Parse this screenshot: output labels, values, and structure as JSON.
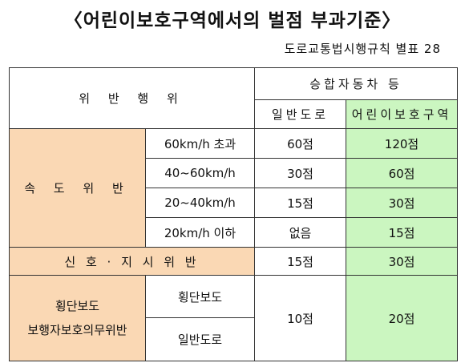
{
  "title": "〈어린이보호구역에서의 벌점 부과기준〉",
  "subtitle": "도로교통법시행규칙 별표 28",
  "header": {
    "violation": "위 반 행 위",
    "vehicle_group": "승합자동차 등",
    "normal_road": "일반도로",
    "school_zone": "어린이보호구역"
  },
  "speeding": {
    "label": "속 도 위 반",
    "rows": [
      {
        "condition": "60km/h 초과",
        "normal": "60점",
        "school": "120점"
      },
      {
        "condition": "40~60km/h",
        "normal": "30점",
        "school": "60점"
      },
      {
        "condition": "20~40km/h",
        "normal": "15점",
        "school": "30점"
      },
      {
        "condition": "20km/h 이하",
        "normal": "없음",
        "school": "15점"
      }
    ]
  },
  "signal": {
    "label": "신 호 · 지 시 위 반",
    "normal": "15점",
    "school": "30점"
  },
  "pedestrian": {
    "label_line1": "횡단보도",
    "label_line2": "보행자보호의무위반",
    "sub1": "횡단보도",
    "sub2": "일반도로",
    "normal": "10점",
    "school": "20점"
  },
  "colors": {
    "orange": "#fad8b4",
    "green": "#cbf6c0"
  }
}
